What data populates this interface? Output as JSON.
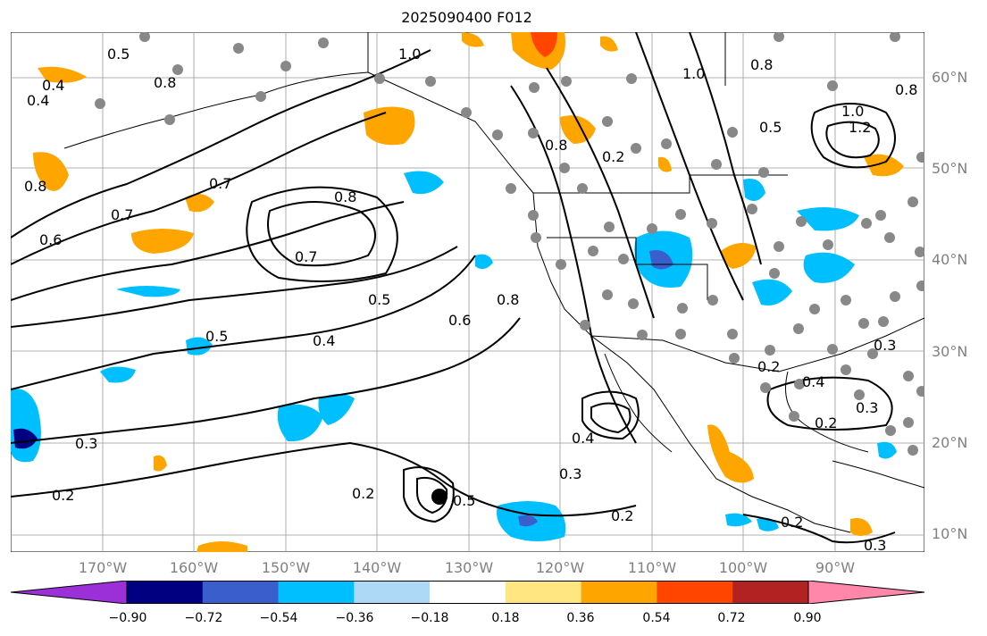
{
  "title": "2025090400 F012",
  "lat_labels": [
    "60°N",
    "50°N",
    "40°N",
    "30°N",
    "20°N",
    "10°N"
  ],
  "lon_labels": [
    "170°W",
    "160°W",
    "150°W",
    "140°W",
    "130°W",
    "120°W",
    "110°W",
    "100°W",
    "90°W"
  ],
  "colorbar": {
    "labels": [
      "−0.90",
      "−0.72",
      "−0.54",
      "−0.36",
      "−0.18",
      "0.18",
      "0.36",
      "0.54",
      "0.72",
      "0.90"
    ],
    "colors": [
      "#9b30d9",
      "#000080",
      "#3a5fcd",
      "#00bfff",
      "#add8f6",
      "#ffffff",
      "#ffe680",
      "#ffa500",
      "#ff4500",
      "#b22222",
      "#ff88aa"
    ]
  },
  "contour_labels": [
    "0.5",
    "0.8",
    "0.4",
    "0.4",
    "0.8",
    "0.6",
    "0.7",
    "0.7",
    "0.8",
    "0.7",
    "0.5",
    "0.6",
    "0.8",
    "0.5",
    "0.4",
    "0.3",
    "0.2",
    "0.2",
    "0.5",
    "0.3",
    "0.2",
    "0.4",
    "0.3",
    "0.2",
    "0.4",
    "0.2",
    "0.3",
    "1.0",
    "1.0",
    "0.8",
    "0.8",
    "1.0",
    "1.2",
    "0.5",
    "0.8",
    "0.2",
    "0.2",
    "0.3"
  ]
}
